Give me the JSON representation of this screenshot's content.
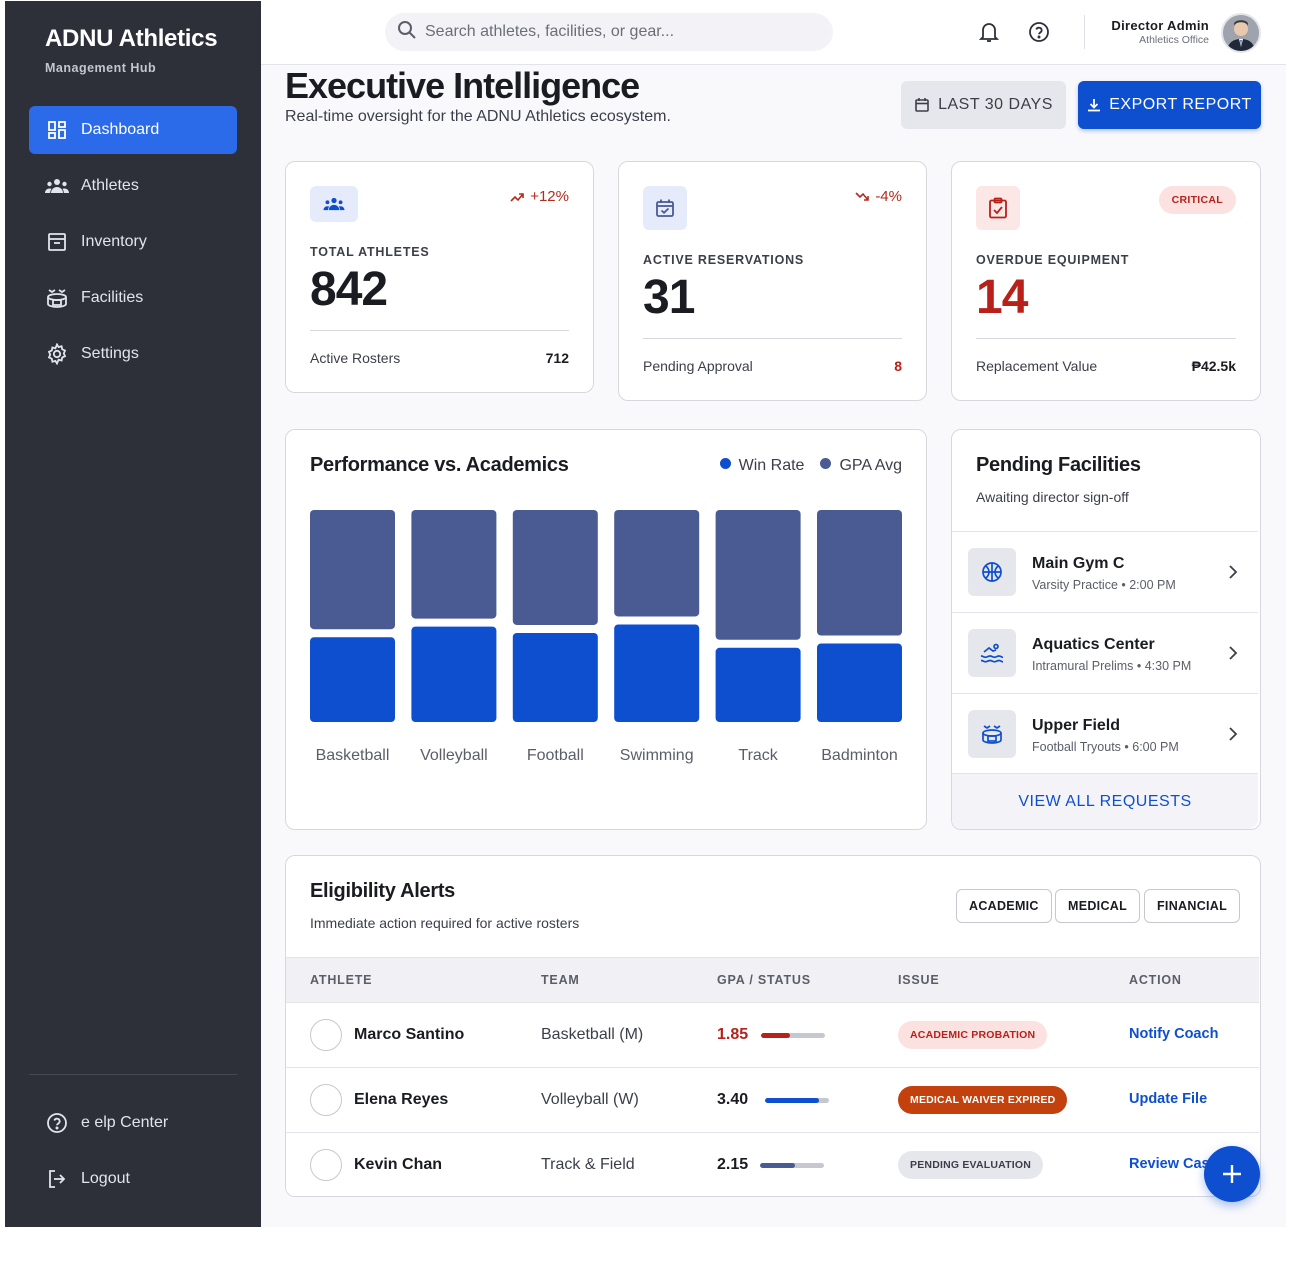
{
  "sidebar": {
    "brand": "ADNU Athletics",
    "brand_sub": "Management Hub",
    "items": [
      {
        "label": "Dashboard",
        "icon": "dashboard-icon",
        "active": true
      },
      {
        "label": "Athletes",
        "icon": "groups-icon"
      },
      {
        "label": "Inventory",
        "icon": "inventory-icon"
      },
      {
        "label": "Facilities",
        "icon": "stadium-icon"
      },
      {
        "label": "Settings",
        "icon": "gear-icon"
      }
    ],
    "help_label": "e elp Center",
    "logout_label": "Logout"
  },
  "topbar": {
    "search_placeholder": "Search athletes, facilities, or gear...",
    "user_name": "Director Admin",
    "user_role": "Athletics Office"
  },
  "header": {
    "title": "Executive Intelligence",
    "subtitle": "Real-time oversight for the ADNU Athletics ecosystem.",
    "range_label": "LAST 30 DAYS",
    "export_label": "EXPORT REPORT"
  },
  "kpis": {
    "athletes": {
      "label": "TOTAL ATHLETES",
      "value": "842",
      "trend": "+12%",
      "foot_label": "Active Rosters",
      "foot_value": "712"
    },
    "reservations": {
      "label": "ACTIVE RESERVATIONS",
      "value": "31",
      "trend": "-4%",
      "foot_label": "Pending Approval",
      "foot_value": "8"
    },
    "equipment": {
      "label": "OVERDUE EQUIPMENT",
      "value": "14",
      "badge": "CRITICAL",
      "foot_label": "Replacement Value",
      "foot_value": "₱42.5k"
    }
  },
  "chart": {
    "title": "Performance vs. Academics"
  },
  "chart_data": {
    "type": "bar",
    "stacked": true,
    "categories": [
      "Basketball",
      "Volleyball",
      "Football",
      "Swimming",
      "Track",
      "Badminton"
    ],
    "series": [
      {
        "name": "Win Rate",
        "color": "#0d4fcf",
        "values": [
          40,
          45,
          42,
          46,
          35,
          37
        ]
      },
      {
        "name": "GPA Avg",
        "color": "#4a5b94",
        "values": [
          60,
          55,
          58,
          54,
          65,
          63
        ]
      }
    ],
    "ylim": [
      0,
      100
    ],
    "grid": false,
    "legend": "top-right"
  },
  "facilities": {
    "title": "Pending Facilities",
    "subtitle": "Awaiting director sign-off",
    "items": [
      {
        "name": "Main Gym C",
        "detail": "Varsity Practice • 2:00 PM",
        "icon": "basketball-icon"
      },
      {
        "name": "Aquatics Center",
        "detail": "Intramural Prelims • 4:30 PM",
        "icon": "pool-icon"
      },
      {
        "name": "Upper Field",
        "detail": "Football Tryouts • 6:00 PM",
        "icon": "stadium-icon"
      }
    ],
    "view_all": "VIEW ALL REQUESTS"
  },
  "eligibility": {
    "title": "Eligibility Alerts",
    "subtitle": "Immediate action required for active rosters",
    "filters": [
      "ACADEMIC",
      "MEDICAL",
      "FINANCIAL"
    ],
    "columns": [
      "ATHLETE",
      "TEAM",
      "GPA / STATUS",
      "ISSUE",
      "ACTION"
    ],
    "rows": [
      {
        "name": "Marco Santino",
        "team": "Basketball (M)",
        "gpa": "1.85",
        "gpa_fraction": 0.46,
        "issue": "ACADEMIC PROBATION",
        "action": "Notify Coach"
      },
      {
        "name": "Elena Reyes",
        "team": "Volleyball (W)",
        "gpa": "3.40",
        "gpa_fraction": 0.85,
        "issue": "MEDICAL WAIVER EXPIRED",
        "action": "Update File"
      },
      {
        "name": "Kevin Chan",
        "team": "Track & Field",
        "gpa": "2.15",
        "gpa_fraction": 0.54,
        "issue": "PENDING EVALUATION",
        "action": "Review Case"
      }
    ]
  },
  "colors": {
    "primary": "#0d4fcf",
    "sidebar": "#2d3039",
    "critical": "#b8211a",
    "gpa_bar": "#4a5b94"
  }
}
